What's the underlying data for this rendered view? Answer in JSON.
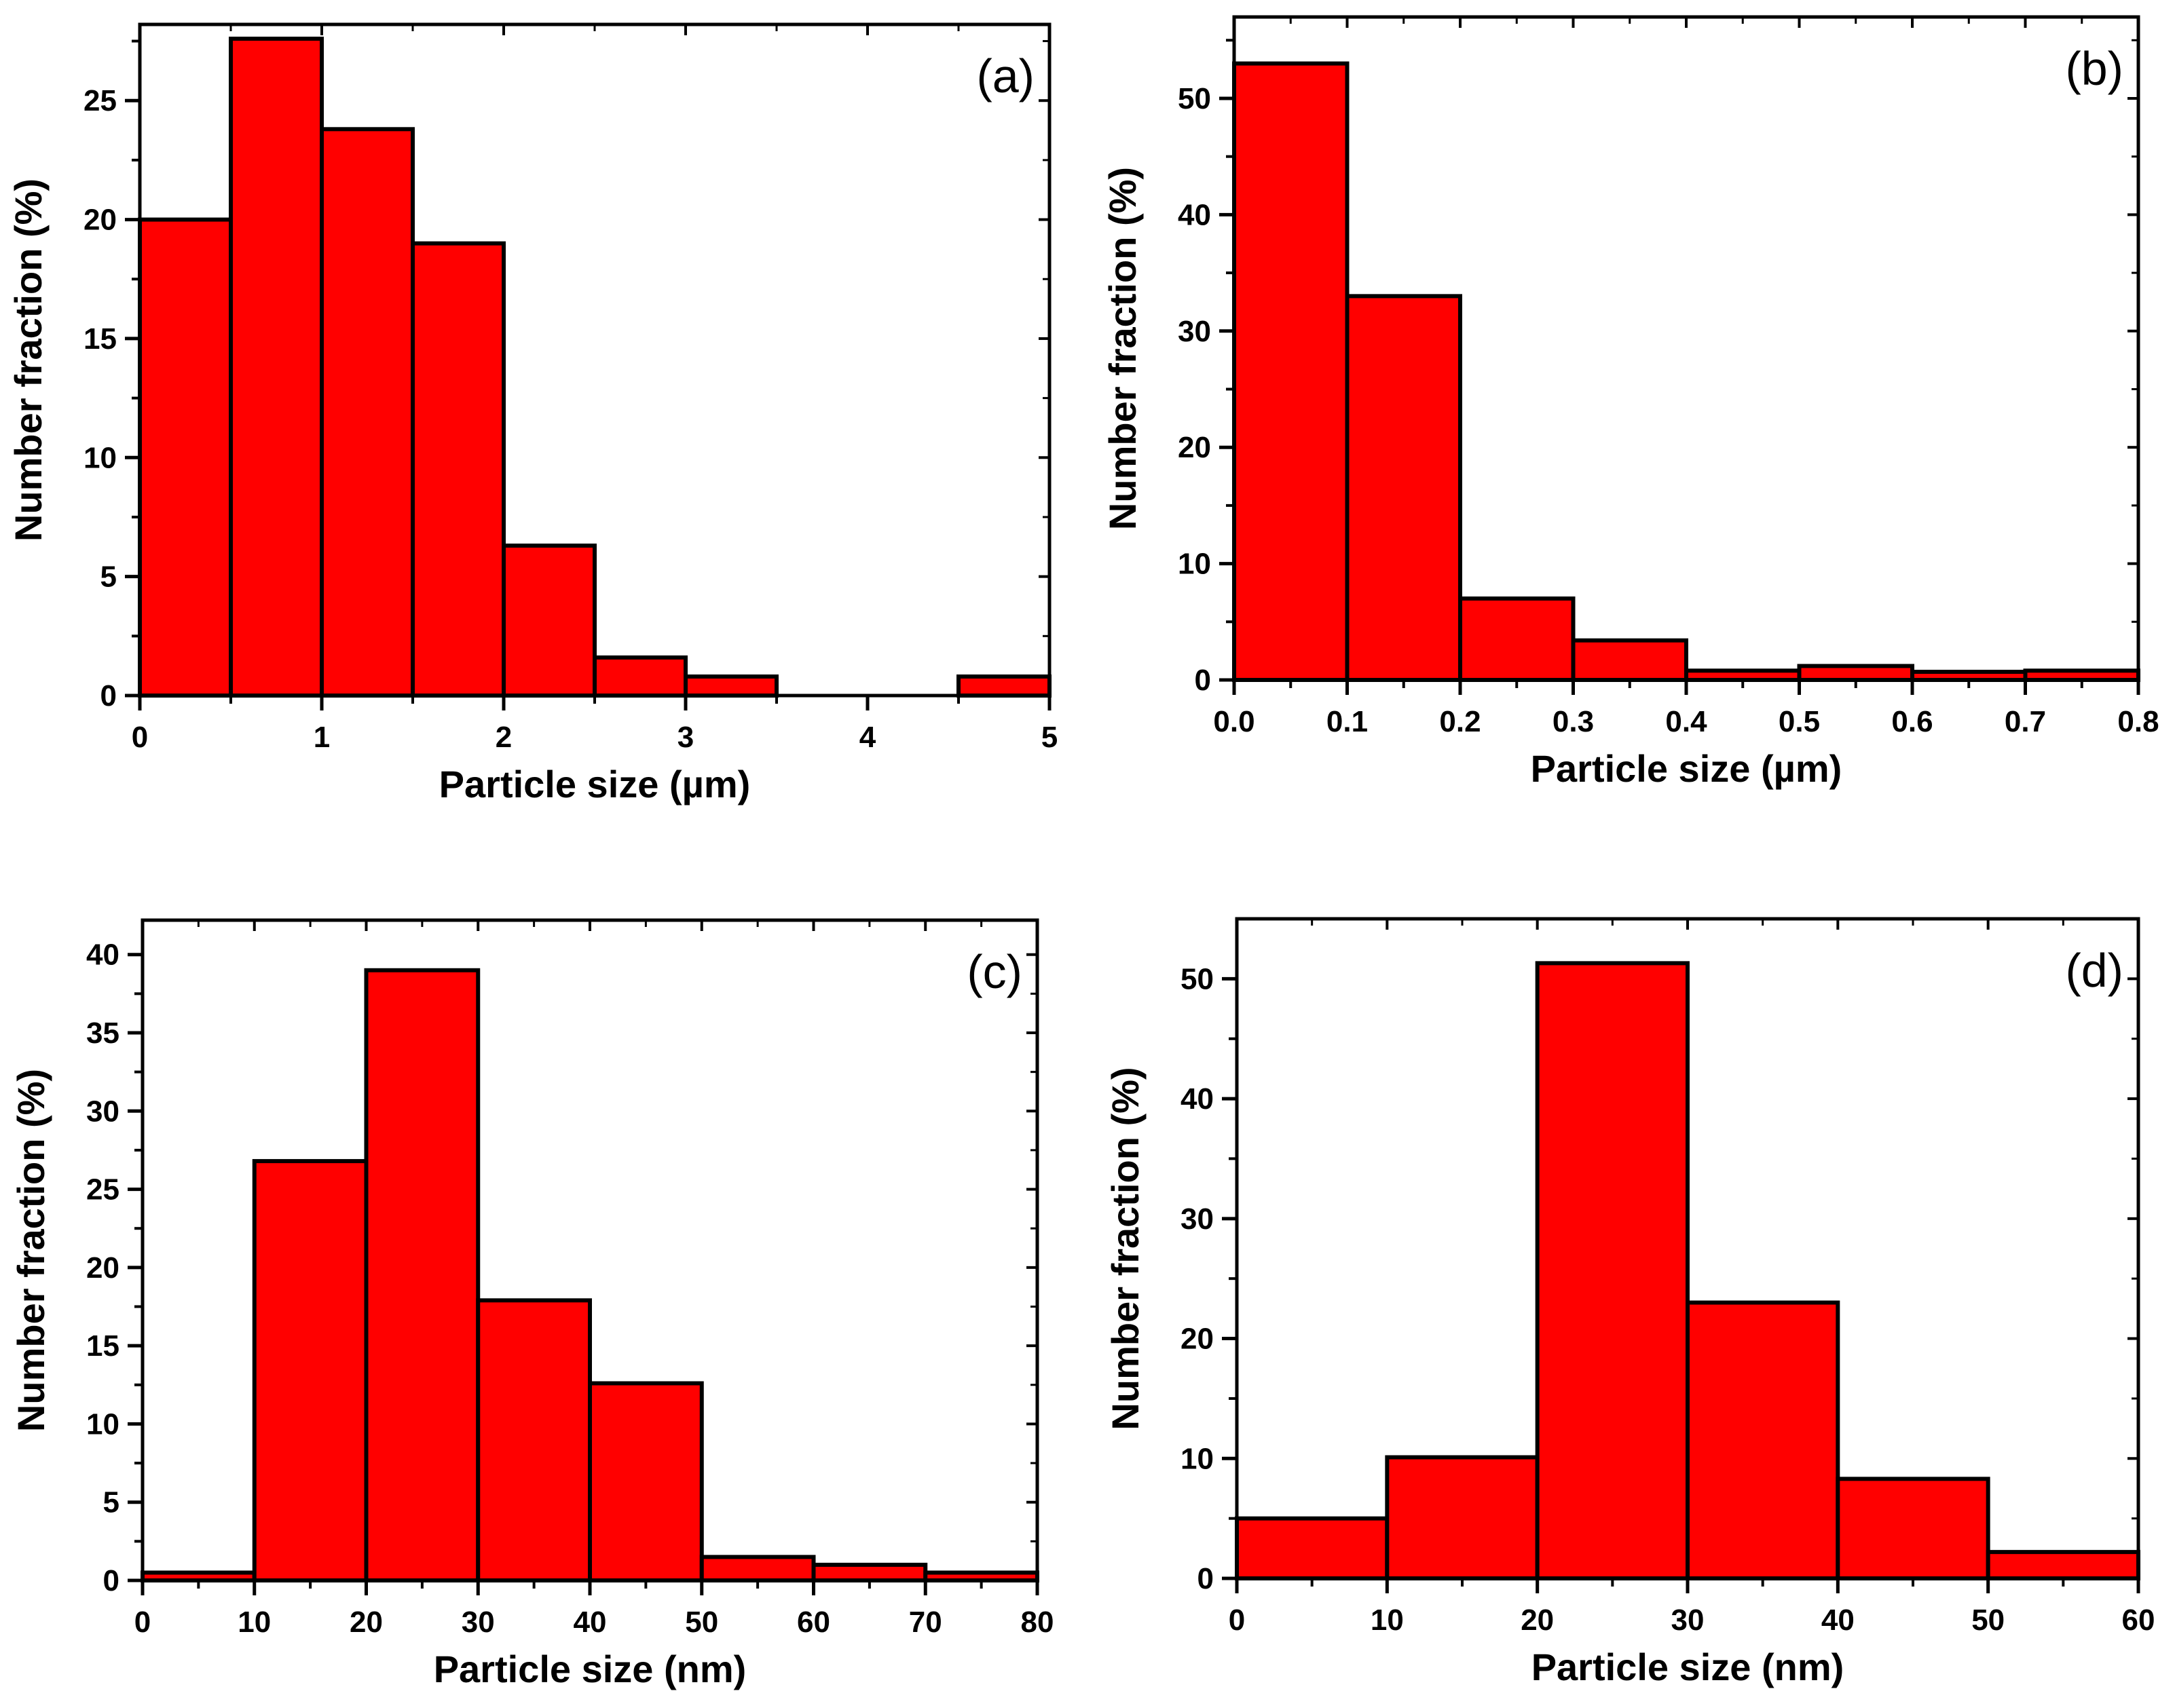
{
  "chart_data": [
    {
      "type": "bar",
      "panel_label": "(a)",
      "bin_edges": [
        0,
        0.5,
        1,
        1.5,
        2,
        2.5,
        3,
        3.5,
        4,
        4.5,
        5
      ],
      "values": [
        20,
        27.6,
        23.8,
        19,
        6.3,
        1.6,
        0.8,
        0,
        0,
        0.8
      ],
      "xlabel": "Particle size (µm)",
      "ylabel": "Number fraction (%)",
      "xlim": [
        0,
        5
      ],
      "ylim": [
        0,
        28.2
      ],
      "xticks": [
        0,
        1,
        2,
        3,
        4,
        5
      ],
      "xtick_labels": [
        "0",
        "1",
        "2",
        "3",
        "4",
        "5"
      ],
      "yticks": [
        0,
        5,
        10,
        15,
        20,
        25
      ],
      "ytick_labels": [
        "0",
        "5",
        "10",
        "15",
        "20",
        "25"
      ],
      "bar_color": "#ff0000",
      "grid": false
    },
    {
      "type": "bar",
      "panel_label": "(b)",
      "bin_edges": [
        0.0,
        0.1,
        0.2,
        0.3,
        0.4,
        0.5,
        0.6,
        0.7,
        0.8
      ],
      "values": [
        53,
        33,
        7,
        3.4,
        0.8,
        1.2,
        0.7,
        0.8
      ],
      "xlabel": "Particle size (µm)",
      "ylabel": "Number fraction (%)",
      "xlim": [
        0,
        0.8
      ],
      "ylim": [
        0,
        57
      ],
      "xticks": [
        0,
        0.1,
        0.2,
        0.3,
        0.4,
        0.5,
        0.6,
        0.7,
        0.8
      ],
      "xtick_labels": [
        "0.0",
        "0.1",
        "0.2",
        "0.3",
        "0.4",
        "0.5",
        "0.6",
        "0.7",
        "0.8"
      ],
      "yticks": [
        0,
        10,
        20,
        30,
        40,
        50
      ],
      "ytick_labels": [
        "0",
        "10",
        "20",
        "30",
        "40",
        "50"
      ],
      "bar_color": "#ff0000",
      "grid": false
    },
    {
      "type": "bar",
      "panel_label": "(c)",
      "bin_edges": [
        0,
        10,
        20,
        30,
        40,
        50,
        60,
        70,
        80
      ],
      "values": [
        0.5,
        26.8,
        39,
        17.9,
        12.6,
        1.5,
        1,
        0.5
      ],
      "xlabel": "Particle size (nm)",
      "ylabel": "Number fraction (%)",
      "xlim": [
        0,
        80
      ],
      "ylim": [
        0,
        42.2
      ],
      "xticks": [
        0,
        10,
        20,
        30,
        40,
        50,
        60,
        70,
        80
      ],
      "xtick_labels": [
        "0",
        "10",
        "20",
        "30",
        "40",
        "50",
        "60",
        "70",
        "80"
      ],
      "yticks": [
        0,
        5,
        10,
        15,
        20,
        25,
        30,
        35,
        40
      ],
      "ytick_labels": [
        "0",
        "5",
        "10",
        "15",
        "20",
        "25",
        "30",
        "35",
        "40"
      ],
      "bar_color": "#ff0000",
      "grid": false
    },
    {
      "type": "bar",
      "panel_label": "(d)",
      "bin_edges": [
        0,
        10,
        20,
        30,
        40,
        50,
        60
      ],
      "values": [
        5,
        10.1,
        51.3,
        23,
        8.3,
        2.2
      ],
      "xlabel": "Particle size (nm)",
      "ylabel": "Number fraction (%)",
      "xlim": [
        0,
        60
      ],
      "ylim": [
        0,
        55
      ],
      "xticks": [
        0,
        10,
        20,
        30,
        40,
        50,
        60
      ],
      "xtick_labels": [
        "0",
        "10",
        "20",
        "30",
        "40",
        "50",
        "60"
      ],
      "yticks": [
        0,
        10,
        20,
        30,
        40,
        50
      ],
      "ytick_labels": [
        "0",
        "10",
        "20",
        "30",
        "40",
        "50"
      ],
      "bar_color": "#ff0000",
      "grid": false
    }
  ]
}
